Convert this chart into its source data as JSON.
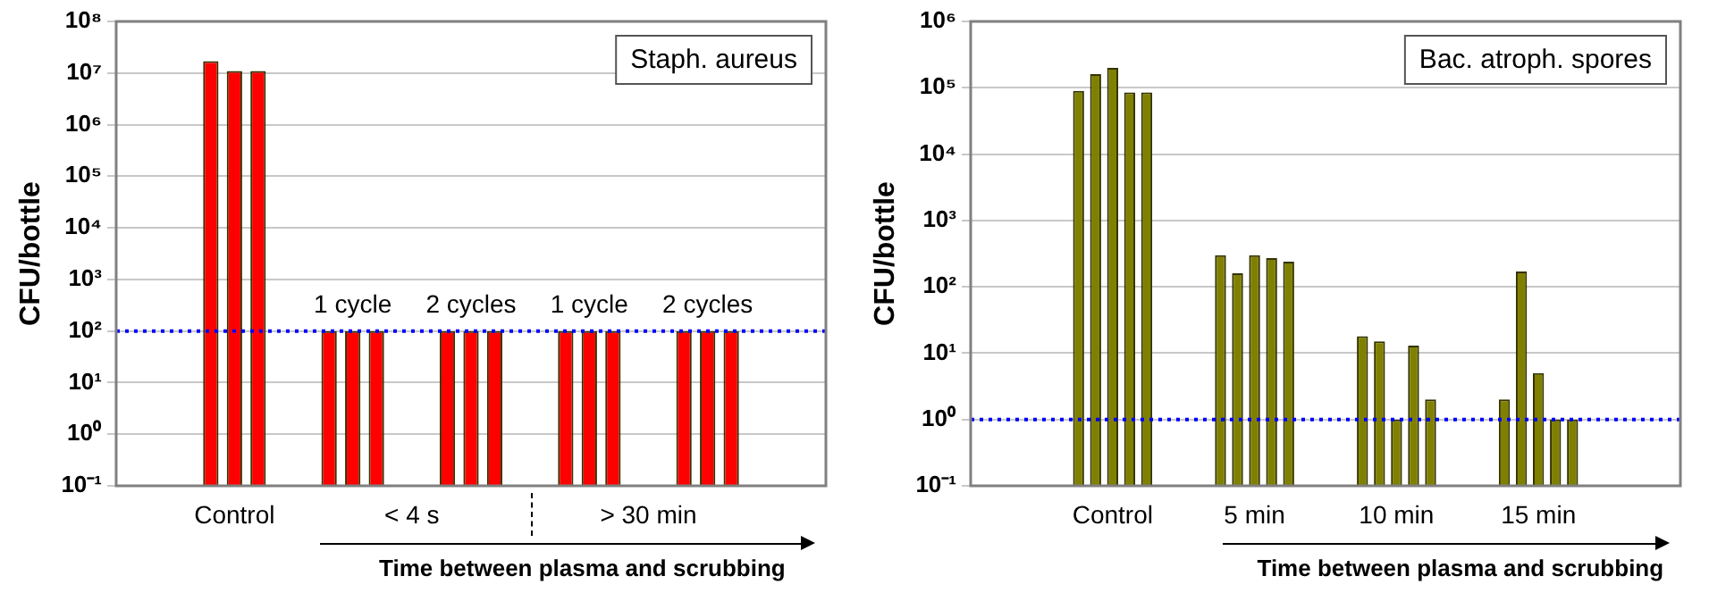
{
  "chart_data": [
    {
      "type": "bar",
      "title": "Staph. aureus",
      "ylabel": "CFU/bottle",
      "xlabel": "Time between plasma and scrubbing",
      "categories": [
        "Control",
        null,
        null,
        null,
        null
      ],
      "series": [
        {
          "color": "#ff0000",
          "values": [
            17000000,
            100,
            100,
            100,
            100
          ]
        },
        {
          "color": "#ff0000",
          "values": [
            11000000,
            100,
            100,
            100,
            100
          ]
        },
        {
          "color": "#ff0000",
          "values": [
            11000000,
            100,
            100,
            100,
            100
          ]
        }
      ],
      "log": "y",
      "ylim": [
        0.1,
        100000000
      ],
      "yticks": [
        {
          "value": 0.1,
          "label": "10⁻¹"
        },
        {
          "value": 1,
          "label": "10⁰"
        },
        {
          "value": 10,
          "label": "10¹"
        },
        {
          "value": 100,
          "label": "10²"
        },
        {
          "value": 1000,
          "label": "10³"
        },
        {
          "value": 10000,
          "label": "10⁴"
        },
        {
          "value": 100000,
          "label": "10⁵"
        },
        {
          "value": 1000000,
          "label": "10⁶"
        },
        {
          "value": 10000000,
          "label": "10⁷"
        },
        {
          "value": 100000000,
          "label": "10⁸"
        }
      ],
      "grid": "y",
      "ref_lines": [
        {
          "axis": "y",
          "value": 100,
          "color": "#0000ff",
          "line_style": "dotted"
        }
      ],
      "annotations": [
        "1 cycle",
        "2 cycles",
        "1 cycle",
        "2 cycles",
        "< 4 s",
        "> 30 min"
      ]
    },
    {
      "type": "bar",
      "title": "Bac. atroph. spores",
      "ylabel": "CFU/bottle",
      "xlabel": "Time between plasma and scrubbing",
      "categories": [
        "Control",
        "5 min",
        "10 min",
        "15 min"
      ],
      "series": [
        {
          "color": "#808000",
          "values": [
            90000,
            300,
            18,
            2
          ]
        },
        {
          "color": "#808000",
          "values": [
            160000,
            160,
            15,
            170
          ]
        },
        {
          "color": "#808000",
          "values": [
            200000,
            300,
            1,
            5
          ]
        },
        {
          "color": "#808000",
          "values": [
            85000,
            270,
            13,
            1
          ]
        },
        {
          "color": "#808000",
          "values": [
            85000,
            240,
            2,
            1
          ]
        }
      ],
      "log": "y",
      "ylim": [
        0.1,
        1000000
      ],
      "yticks": [
        {
          "value": 0.1,
          "label": "10⁻¹"
        },
        {
          "value": 1,
          "label": "10⁰"
        },
        {
          "value": 10,
          "label": "10¹"
        },
        {
          "value": 100,
          "label": "10²"
        },
        {
          "value": 1000,
          "label": "10³"
        },
        {
          "value": 10000,
          "label": "10⁴"
        },
        {
          "value": 100000,
          "label": "10⁵"
        },
        {
          "value": 1000000,
          "label": "10⁶"
        }
      ],
      "grid": "y",
      "ref_lines": [
        {
          "axis": "y",
          "value": 1,
          "color": "#0000ff",
          "line_style": "dotted"
        }
      ]
    }
  ]
}
